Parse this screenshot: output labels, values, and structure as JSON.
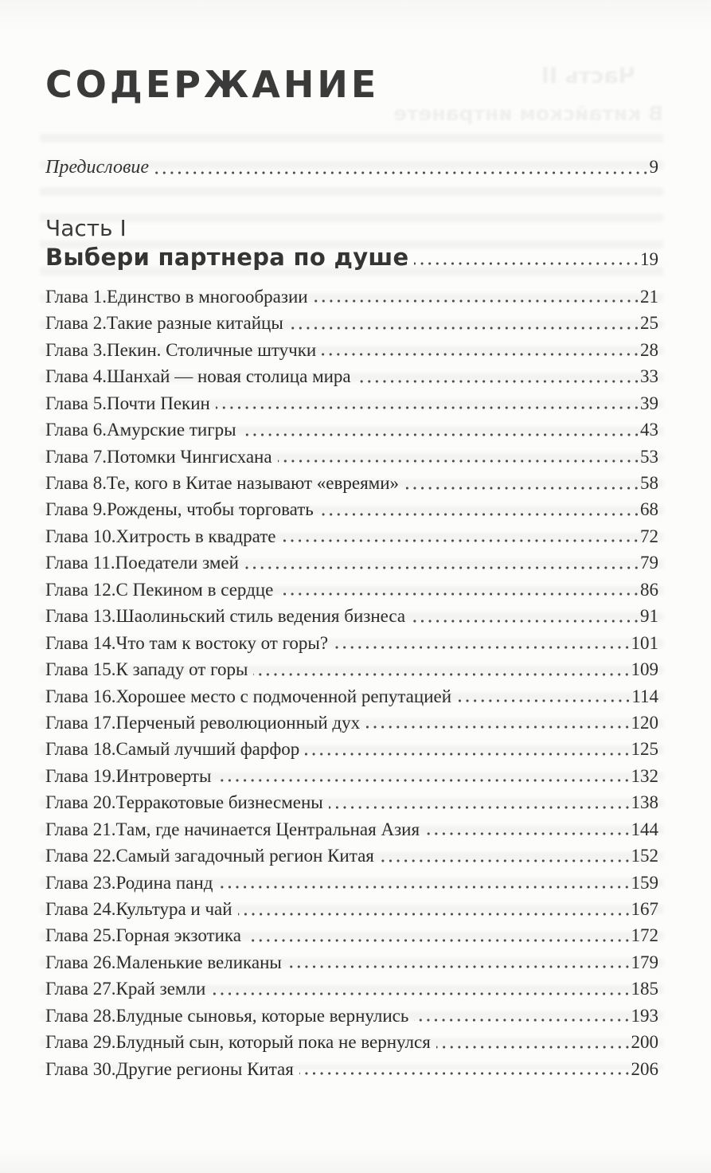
{
  "page": {
    "title": "СОДЕРЖАНИЕ",
    "preface": {
      "label": "Предисловие",
      "page": "9"
    },
    "part": {
      "kicker": "Часть I",
      "title": "Выбери партнера по душе",
      "page": "19"
    },
    "chapters": [
      {
        "label": "Глава 1.",
        "title": "Единство в многообразии",
        "page": "21"
      },
      {
        "label": "Глава 2.",
        "title": "Такие разные китайцы",
        "page": "25"
      },
      {
        "label": "Глава 3.",
        "title": "Пекин. Столичные штучки",
        "page": "28"
      },
      {
        "label": "Глава 4.",
        "title": "Шанхай — новая столица мира",
        "page": "33"
      },
      {
        "label": "Глава 5.",
        "title": "Почти Пекин",
        "page": "39"
      },
      {
        "label": "Глава 6.",
        "title": "Амурские тигры",
        "page": "43"
      },
      {
        "label": "Глава 7.",
        "title": "Потомки Чингисхана",
        "page": "53"
      },
      {
        "label": "Глава 8.",
        "title": "Те, кого в Китае называют «евреями»",
        "page": "58"
      },
      {
        "label": "Глава 9.",
        "title": "Рождены, чтобы торговать",
        "page": "68"
      },
      {
        "label": "Глава 10.",
        "title": "Хитрость в квадрате",
        "page": "72"
      },
      {
        "label": "Глава 11.",
        "title": "Поедатели змей",
        "page": "79"
      },
      {
        "label": "Глава 12.",
        "title": "С Пекином в сердце",
        "page": "86"
      },
      {
        "label": "Глава 13.",
        "title": "Шаолиньский стиль ведения бизнеса",
        "page": "91"
      },
      {
        "label": "Глава 14.",
        "title": "Что там к востоку от горы?",
        "page": "101"
      },
      {
        "label": "Глава 15.",
        "title": "К западу от горы",
        "page": "109"
      },
      {
        "label": "Глава 16.",
        "title": "Хорошее место с подмоченной репутацией",
        "page": "114"
      },
      {
        "label": "Глава 17.",
        "title": "Перченый революционный дух",
        "page": "120"
      },
      {
        "label": "Глава 18.",
        "title": "Самый лучший фарфор",
        "page": "125"
      },
      {
        "label": "Глава 19.",
        "title": "Интроверты",
        "page": "132"
      },
      {
        "label": "Глава 20.",
        "title": "Терракотовые бизнесмены",
        "page": "138"
      },
      {
        "label": "Глава 21.",
        "title": "Там, где начинается Центральная Азия",
        "page": "144"
      },
      {
        "label": "Глава 22.",
        "title": "Самый загадочный регион Китая",
        "page": "152"
      },
      {
        "label": "Глава 23.",
        "title": "Родина панд",
        "page": "159"
      },
      {
        "label": "Глава 24.",
        "title": "Культура и чай",
        "page": "167"
      },
      {
        "label": "Глава 25.",
        "title": "Горная экзотика",
        "page": "172"
      },
      {
        "label": "Глава 26.",
        "title": "Маленькие великаны",
        "page": "179"
      },
      {
        "label": "Глава 27.",
        "title": "Край земли",
        "page": "185"
      },
      {
        "label": "Глава 28.",
        "title": "Блудные сыновья, которые вернулись",
        "page": "193"
      },
      {
        "label": "Глава 29.",
        "title": "Блудный сын, который пока не вернулся",
        "page": "200"
      },
      {
        "label": "Глава 30.",
        "title": "Другие регионы Китая",
        "page": "206"
      }
    ],
    "bleedthrough": {
      "line1": "Часть II",
      "line2": "В китайском интранете"
    },
    "colors": {
      "paper": "#fcfcfa",
      "ink": "#2e2e2e",
      "heading_ink": "#3a3a3a"
    }
  }
}
